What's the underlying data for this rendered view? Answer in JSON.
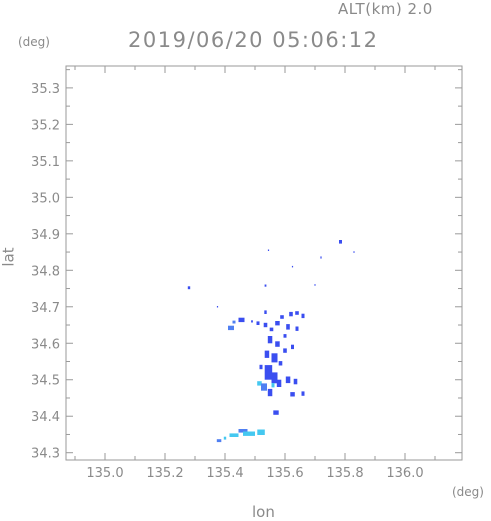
{
  "header": {
    "altitude_label": "ALT(km) 2.0",
    "timestamp": "2019/06/20 05:06:12"
  },
  "axes": {
    "y_unit": "(deg)",
    "x_unit": "(deg)",
    "y_label": "lat",
    "x_label": "lon"
  },
  "chart_data": {
    "type": "heatmap",
    "title": "2019/06/20 05:06:12",
    "subtitle": "ALT(km) 2.0",
    "xlabel": "lon",
    "ylabel": "lat",
    "xlim": [
      134.87,
      136.19
    ],
    "ylim": [
      34.28,
      35.36
    ],
    "x_ticks": [
      135.0,
      135.2,
      135.4,
      135.6,
      135.8,
      136.0
    ],
    "y_ticks": [
      34.3,
      34.4,
      34.5,
      34.6,
      34.7,
      34.8,
      34.9,
      35.0,
      35.1,
      35.2,
      35.3
    ],
    "x_tick_labels": [
      "135.0",
      "135.2",
      "135.4",
      "135.6",
      "135.8",
      "136.0"
    ],
    "y_tick_labels": [
      "34.3",
      "34.4",
      "34.5",
      "34.6",
      "34.7",
      "34.8",
      "34.9",
      "35.0",
      "35.1",
      "35.2",
      "35.3"
    ],
    "grid": false,
    "colors": {
      "strong": "#3a4ef0",
      "medium": "#4f7ff2",
      "weak": "#45c8f0",
      "axis": "#9a9a9a"
    },
    "echoes": [
      {
        "lon": 135.28,
        "lat": 34.752,
        "w": 0.008,
        "h": 0.008,
        "c": "strong"
      },
      {
        "lon": 135.42,
        "lat": 34.642,
        "w": 0.02,
        "h": 0.012,
        "c": "medium"
      },
      {
        "lon": 135.43,
        "lat": 34.658,
        "w": 0.01,
        "h": 0.008,
        "c": "medium"
      },
      {
        "lon": 135.455,
        "lat": 34.664,
        "w": 0.02,
        "h": 0.012,
        "c": "strong"
      },
      {
        "lon": 135.51,
        "lat": 34.655,
        "w": 0.01,
        "h": 0.01,
        "c": "strong"
      },
      {
        "lon": 135.535,
        "lat": 34.685,
        "w": 0.008,
        "h": 0.01,
        "c": "strong"
      },
      {
        "lon": 135.535,
        "lat": 34.65,
        "w": 0.012,
        "h": 0.012,
        "c": "strong"
      },
      {
        "lon": 135.555,
        "lat": 34.638,
        "w": 0.012,
        "h": 0.01,
        "c": "strong"
      },
      {
        "lon": 135.575,
        "lat": 34.655,
        "w": 0.015,
        "h": 0.012,
        "c": "strong"
      },
      {
        "lon": 135.59,
        "lat": 34.672,
        "w": 0.012,
        "h": 0.01,
        "c": "strong"
      },
      {
        "lon": 135.62,
        "lat": 34.68,
        "w": 0.012,
        "h": 0.012,
        "c": "strong"
      },
      {
        "lon": 135.64,
        "lat": 34.683,
        "w": 0.012,
        "h": 0.01,
        "c": "strong"
      },
      {
        "lon": 135.66,
        "lat": 34.675,
        "w": 0.01,
        "h": 0.012,
        "c": "strong"
      },
      {
        "lon": 135.61,
        "lat": 34.645,
        "w": 0.012,
        "h": 0.015,
        "c": "strong"
      },
      {
        "lon": 135.64,
        "lat": 34.64,
        "w": 0.01,
        "h": 0.012,
        "c": "strong"
      },
      {
        "lon": 135.6,
        "lat": 34.62,
        "w": 0.01,
        "h": 0.01,
        "c": "strong"
      },
      {
        "lon": 135.55,
        "lat": 34.61,
        "w": 0.015,
        "h": 0.02,
        "c": "strong"
      },
      {
        "lon": 135.575,
        "lat": 34.598,
        "w": 0.015,
        "h": 0.015,
        "c": "strong"
      },
      {
        "lon": 135.6,
        "lat": 34.58,
        "w": 0.012,
        "h": 0.012,
        "c": "strong"
      },
      {
        "lon": 135.625,
        "lat": 34.59,
        "w": 0.01,
        "h": 0.012,
        "c": "strong"
      },
      {
        "lon": 135.54,
        "lat": 34.57,
        "w": 0.015,
        "h": 0.02,
        "c": "strong"
      },
      {
        "lon": 135.565,
        "lat": 34.56,
        "w": 0.02,
        "h": 0.025,
        "c": "strong"
      },
      {
        "lon": 135.585,
        "lat": 34.545,
        "w": 0.012,
        "h": 0.012,
        "c": "strong"
      },
      {
        "lon": 135.52,
        "lat": 34.535,
        "w": 0.01,
        "h": 0.012,
        "c": "strong"
      },
      {
        "lon": 135.545,
        "lat": 34.52,
        "w": 0.025,
        "h": 0.04,
        "c": "strong"
      },
      {
        "lon": 135.565,
        "lat": 34.505,
        "w": 0.02,
        "h": 0.03,
        "c": "strong"
      },
      {
        "lon": 135.58,
        "lat": 34.49,
        "w": 0.015,
        "h": 0.02,
        "c": "strong"
      },
      {
        "lon": 135.515,
        "lat": 34.49,
        "w": 0.015,
        "h": 0.012,
        "c": "weak"
      },
      {
        "lon": 135.53,
        "lat": 34.48,
        "w": 0.02,
        "h": 0.02,
        "c": "medium"
      },
      {
        "lon": 135.55,
        "lat": 34.465,
        "w": 0.015,
        "h": 0.02,
        "c": "strong"
      },
      {
        "lon": 135.56,
        "lat": 34.485,
        "w": 0.01,
        "h": 0.012,
        "c": "weak"
      },
      {
        "lon": 135.61,
        "lat": 34.5,
        "w": 0.015,
        "h": 0.018,
        "c": "strong"
      },
      {
        "lon": 135.635,
        "lat": 34.495,
        "w": 0.012,
        "h": 0.015,
        "c": "strong"
      },
      {
        "lon": 135.625,
        "lat": 34.46,
        "w": 0.015,
        "h": 0.012,
        "c": "strong"
      },
      {
        "lon": 135.66,
        "lat": 34.462,
        "w": 0.01,
        "h": 0.012,
        "c": "strong"
      },
      {
        "lon": 135.57,
        "lat": 34.41,
        "w": 0.018,
        "h": 0.012,
        "c": "strong"
      },
      {
        "lon": 135.46,
        "lat": 34.36,
        "w": 0.03,
        "h": 0.01,
        "c": "medium"
      },
      {
        "lon": 135.48,
        "lat": 34.352,
        "w": 0.04,
        "h": 0.012,
        "c": "weak"
      },
      {
        "lon": 135.43,
        "lat": 34.348,
        "w": 0.03,
        "h": 0.01,
        "c": "weak"
      },
      {
        "lon": 135.52,
        "lat": 34.356,
        "w": 0.025,
        "h": 0.015,
        "c": "weak"
      },
      {
        "lon": 135.38,
        "lat": 34.333,
        "w": 0.015,
        "h": 0.008,
        "c": "medium"
      },
      {
        "lon": 135.4,
        "lat": 34.34,
        "w": 0.008,
        "h": 0.008,
        "c": "weak"
      },
      {
        "lon": 135.785,
        "lat": 34.878,
        "w": 0.01,
        "h": 0.01,
        "c": "strong"
      },
      {
        "lon": 135.72,
        "lat": 34.835,
        "w": 0.004,
        "h": 0.006,
        "c": "strong"
      },
      {
        "lon": 135.83,
        "lat": 34.85,
        "w": 0.004,
        "h": 0.004,
        "c": "strong"
      },
      {
        "lon": 135.545,
        "lat": 34.855,
        "w": 0.004,
        "h": 0.004,
        "c": "strong"
      },
      {
        "lon": 135.625,
        "lat": 34.81,
        "w": 0.004,
        "h": 0.004,
        "c": "strong"
      },
      {
        "lon": 135.535,
        "lat": 34.758,
        "w": 0.006,
        "h": 0.006,
        "c": "strong"
      },
      {
        "lon": 135.7,
        "lat": 34.76,
        "w": 0.004,
        "h": 0.004,
        "c": "strong"
      },
      {
        "lon": 135.375,
        "lat": 34.7,
        "w": 0.004,
        "h": 0.004,
        "c": "strong"
      },
      {
        "lon": 135.49,
        "lat": 34.66,
        "w": 0.006,
        "h": 0.006,
        "c": "strong"
      }
    ]
  }
}
